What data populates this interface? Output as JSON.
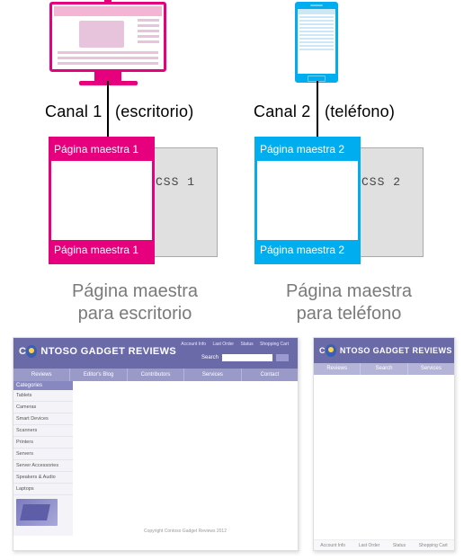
{
  "channel1": {
    "label_left": "Canal 1",
    "label_right": "(escritorio)"
  },
  "channel2": {
    "label_left": "Canal 2",
    "label_right": "(teléfono)"
  },
  "mp1": {
    "top": "Página maestra 1",
    "bottom": "Página maestra 1",
    "css": "CSS 1",
    "color": "#e6007e"
  },
  "mp2": {
    "top": "Página maestra 2",
    "bottom": "Página maestra 2",
    "css": "CSS 2",
    "color": "#00aeef"
  },
  "subtitle1": {
    "line1": "Página maestra",
    "line2": "para escritorio"
  },
  "subtitle2": {
    "line1": "Página maestra",
    "line2": "para teléfono"
  },
  "desktop_preview": {
    "brand_prefix": "C",
    "brand_rest": "NTOSO GADGET REVIEWS",
    "toplinks": [
      "Account Info",
      "Last Order",
      "Status",
      "Shopping Cart"
    ],
    "search_label": "Search",
    "nav": [
      "Reviews",
      "Editor's Blog",
      "Contributors",
      "Services",
      "Contact"
    ],
    "side_header": "Categories",
    "side_items": [
      "Tablets",
      "Cameras",
      "Smart Devices",
      "Scanners",
      "Printers",
      "Servers",
      "Server Accessories",
      "Speakers & Audio",
      "Laptops"
    ],
    "footer": "Copyright Contoso Gadget Reviews 2012"
  },
  "mobile_preview": {
    "brand_prefix": "C",
    "brand_rest": "NTOSO GADGET REVIEWS",
    "nav": [
      "Reviews",
      "Search",
      "Services"
    ],
    "footer": [
      "Account Info",
      "Last Order",
      "Status",
      "Shopping Cart"
    ]
  }
}
